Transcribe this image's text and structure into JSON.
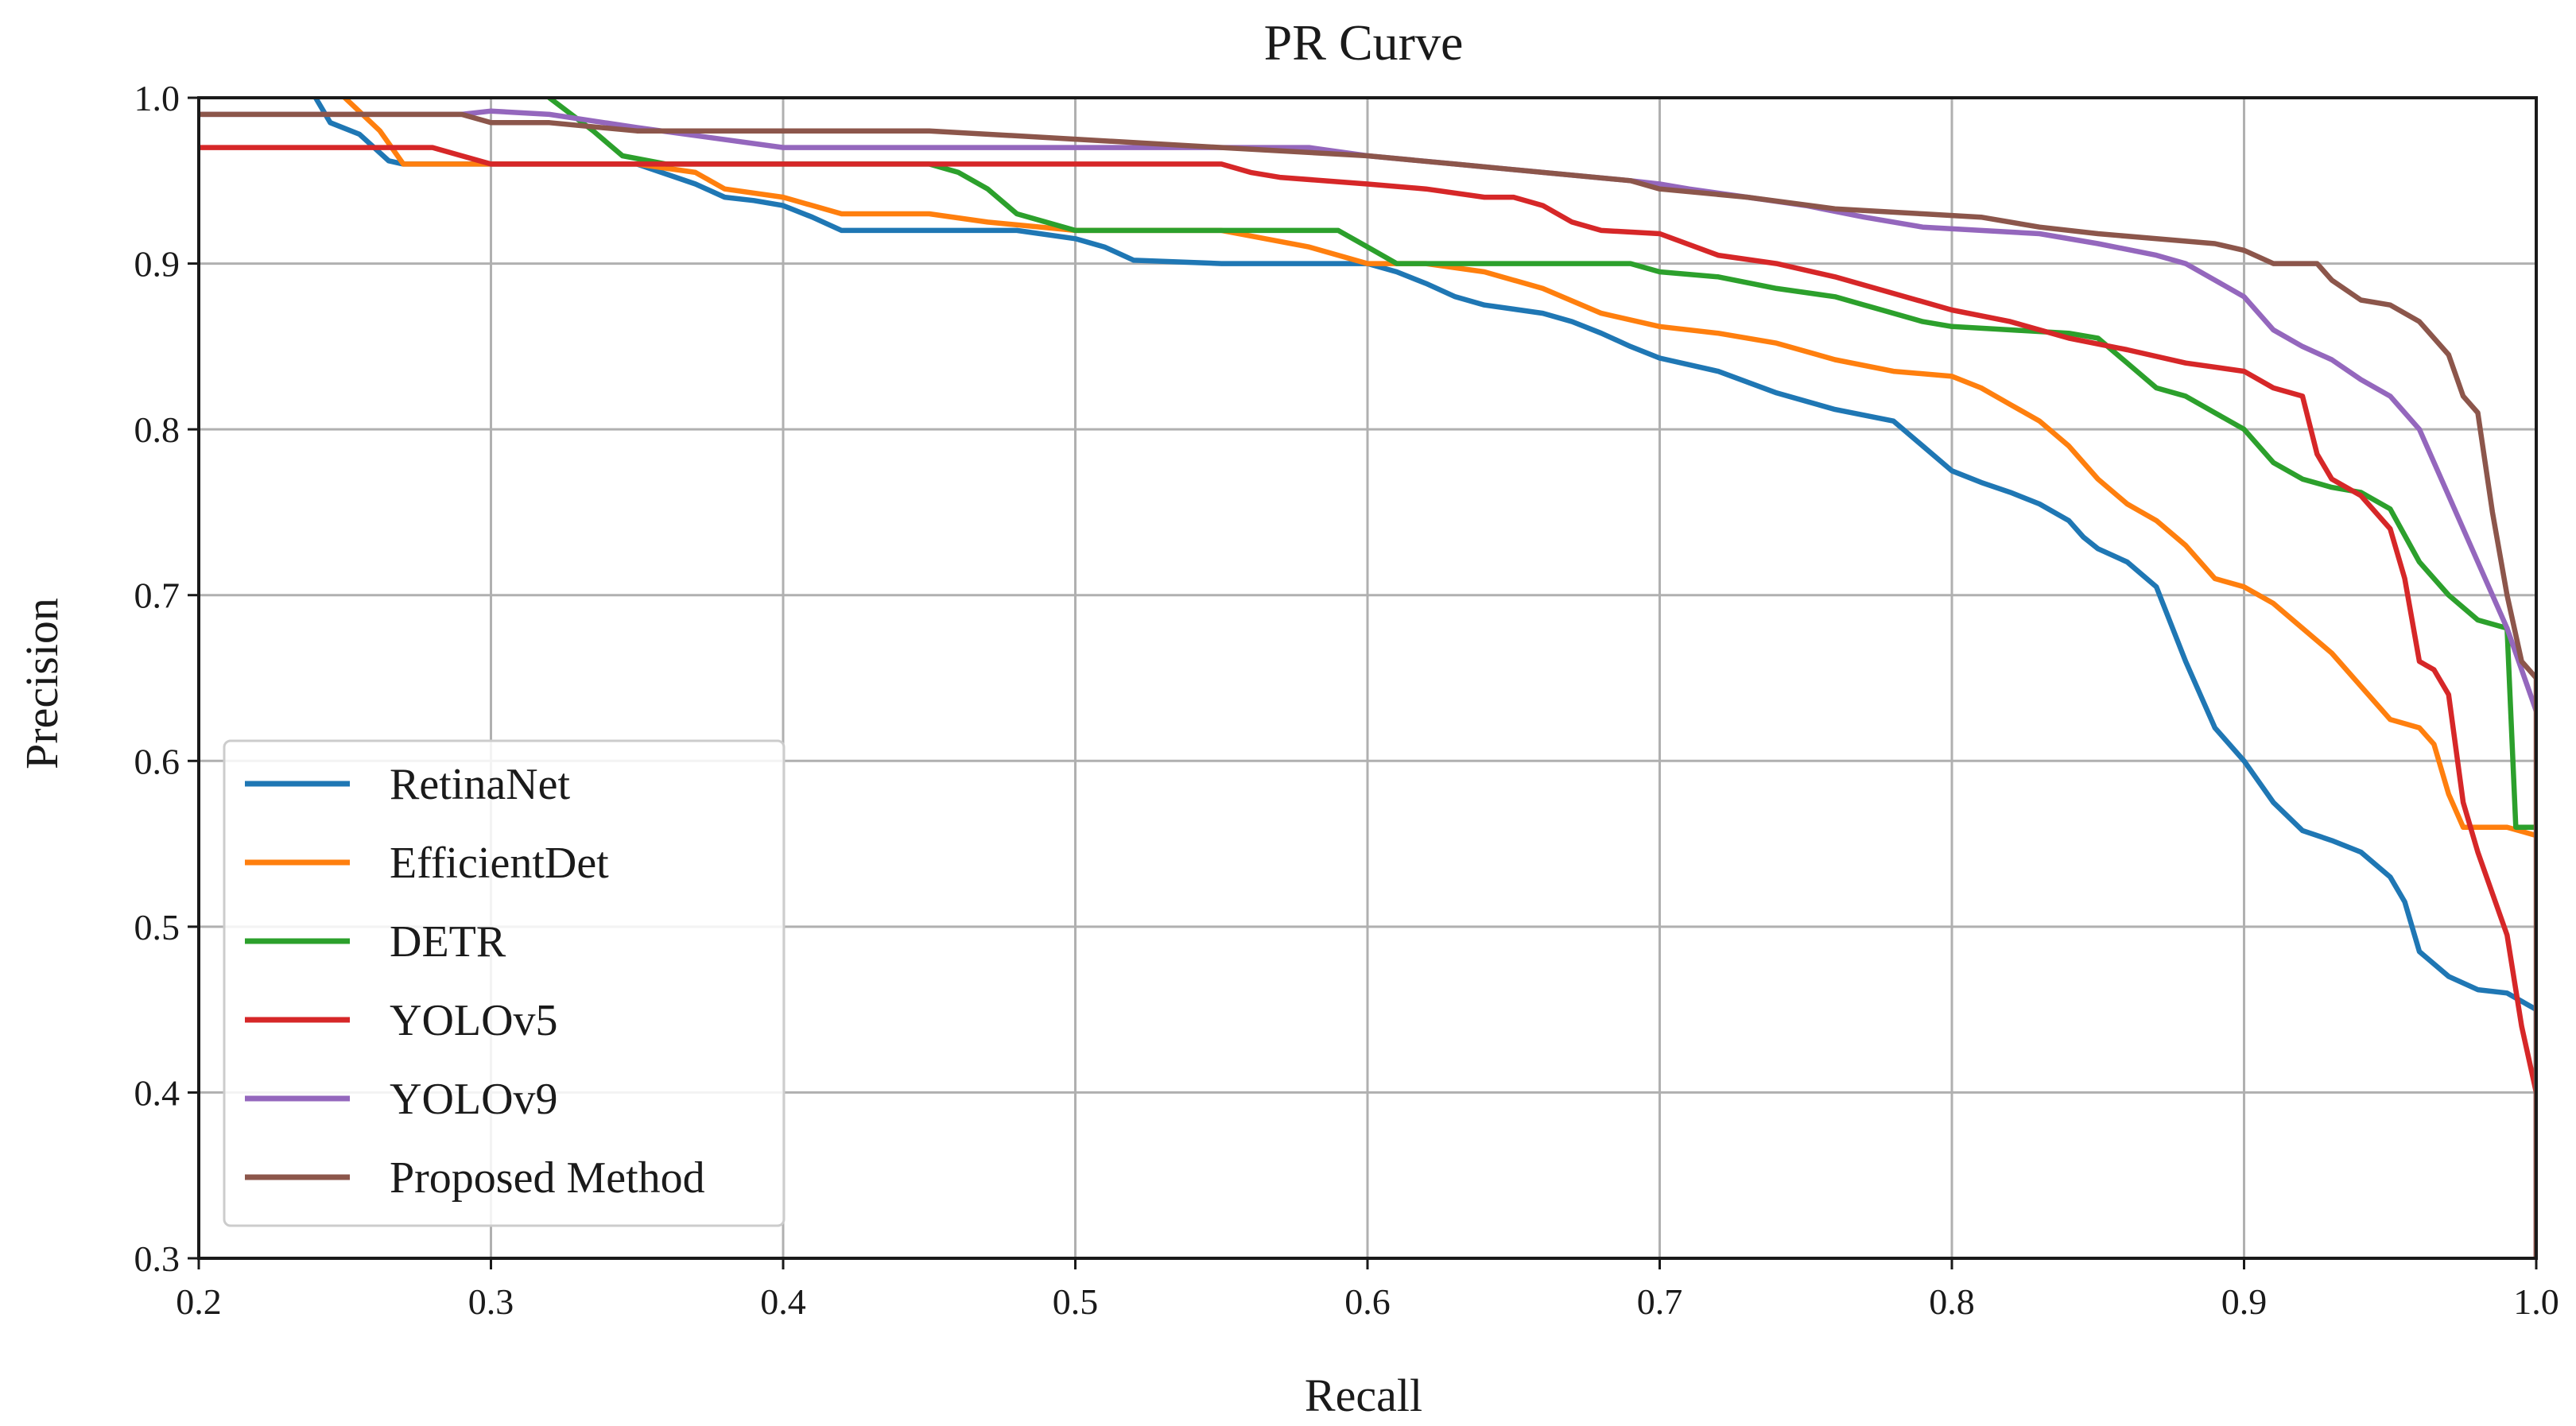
{
  "chart_data": {
    "type": "line",
    "title": "PR Curve",
    "xlabel": "Recall",
    "ylabel": "Precision",
    "xlim": [
      0.2,
      1.0
    ],
    "ylim": [
      0.3,
      1.0
    ],
    "grid": true,
    "legend_position": "lower-left",
    "xticks": [
      "0.2",
      "0.3",
      "0.4",
      "0.5",
      "0.6",
      "0.7",
      "0.8",
      "0.9",
      "1.0"
    ],
    "yticks": [
      "0.3",
      "0.4",
      "0.5",
      "0.6",
      "0.7",
      "0.8",
      "0.9",
      "1.0"
    ],
    "series": [
      {
        "name": "RetinaNet",
        "color": "#1f77b4",
        "x": [
          0.24,
          0.245,
          0.255,
          0.265,
          0.27,
          0.35,
          0.37,
          0.38,
          0.39,
          0.4,
          0.41,
          0.42,
          0.45,
          0.48,
          0.5,
          0.51,
          0.52,
          0.55,
          0.6,
          0.61,
          0.62,
          0.63,
          0.64,
          0.66,
          0.67,
          0.68,
          0.69,
          0.7,
          0.72,
          0.74,
          0.76,
          0.78,
          0.79,
          0.8,
          0.81,
          0.82,
          0.83,
          0.84,
          0.845,
          0.85,
          0.86,
          0.87,
          0.88,
          0.89,
          0.9,
          0.91,
          0.92,
          0.93,
          0.94,
          0.95,
          0.955,
          0.96,
          0.97,
          0.98,
          0.99,
          1.0,
          1.0
        ],
        "y": [
          1.0,
          0.985,
          0.978,
          0.962,
          0.96,
          0.96,
          0.948,
          0.94,
          0.938,
          0.935,
          0.928,
          0.92,
          0.92,
          0.92,
          0.915,
          0.91,
          0.902,
          0.9,
          0.9,
          0.895,
          0.888,
          0.88,
          0.875,
          0.87,
          0.865,
          0.858,
          0.85,
          0.843,
          0.835,
          0.822,
          0.812,
          0.805,
          0.79,
          0.775,
          0.768,
          0.762,
          0.755,
          0.745,
          0.735,
          0.728,
          0.72,
          0.705,
          0.66,
          0.62,
          0.6,
          0.575,
          0.558,
          0.552,
          0.545,
          0.53,
          0.515,
          0.485,
          0.47,
          0.462,
          0.46,
          0.45,
          0.3
        ]
      },
      {
        "name": "EfficientDet",
        "color": "#ff7f0e",
        "x": [
          0.25,
          0.262,
          0.27,
          0.35,
          0.37,
          0.38,
          0.4,
          0.42,
          0.45,
          0.47,
          0.5,
          0.55,
          0.58,
          0.6,
          0.62,
          0.64,
          0.66,
          0.68,
          0.7,
          0.72,
          0.74,
          0.76,
          0.78,
          0.8,
          0.81,
          0.82,
          0.83,
          0.84,
          0.85,
          0.86,
          0.87,
          0.88,
          0.89,
          0.9,
          0.91,
          0.92,
          0.93,
          0.94,
          0.95,
          0.96,
          0.965,
          0.97,
          0.975,
          0.98,
          0.99,
          1.0
        ],
        "y": [
          1.0,
          0.98,
          0.96,
          0.96,
          0.955,
          0.945,
          0.94,
          0.93,
          0.93,
          0.925,
          0.92,
          0.92,
          0.91,
          0.9,
          0.9,
          0.895,
          0.885,
          0.87,
          0.862,
          0.858,
          0.852,
          0.842,
          0.835,
          0.832,
          0.825,
          0.815,
          0.805,
          0.79,
          0.77,
          0.755,
          0.745,
          0.73,
          0.71,
          0.705,
          0.695,
          0.68,
          0.665,
          0.645,
          0.625,
          0.62,
          0.61,
          0.58,
          0.56,
          0.56,
          0.56,
          0.555
        ]
      },
      {
        "name": "DETR",
        "color": "#2ca02c",
        "x": [
          0.32,
          0.335,
          0.345,
          0.36,
          0.45,
          0.46,
          0.47,
          0.48,
          0.5,
          0.55,
          0.59,
          0.6,
          0.61,
          0.62,
          0.65,
          0.69,
          0.7,
          0.72,
          0.74,
          0.76,
          0.77,
          0.78,
          0.79,
          0.8,
          0.82,
          0.84,
          0.85,
          0.86,
          0.87,
          0.88,
          0.89,
          0.9,
          0.91,
          0.92,
          0.93,
          0.94,
          0.95,
          0.96,
          0.97,
          0.98,
          0.99,
          0.993,
          1.0
        ],
        "y": [
          1.0,
          0.98,
          0.965,
          0.96,
          0.96,
          0.955,
          0.945,
          0.93,
          0.92,
          0.92,
          0.92,
          0.91,
          0.9,
          0.9,
          0.9,
          0.9,
          0.895,
          0.892,
          0.885,
          0.88,
          0.875,
          0.87,
          0.865,
          0.862,
          0.86,
          0.858,
          0.855,
          0.84,
          0.825,
          0.82,
          0.81,
          0.8,
          0.78,
          0.77,
          0.765,
          0.762,
          0.752,
          0.72,
          0.7,
          0.685,
          0.68,
          0.56,
          0.56
        ]
      },
      {
        "name": "YOLOv5",
        "color": "#d62728",
        "x": [
          0.2,
          0.28,
          0.29,
          0.3,
          0.55,
          0.56,
          0.57,
          0.6,
          0.62,
          0.64,
          0.65,
          0.66,
          0.67,
          0.68,
          0.7,
          0.72,
          0.74,
          0.76,
          0.78,
          0.8,
          0.82,
          0.84,
          0.86,
          0.88,
          0.9,
          0.91,
          0.92,
          0.925,
          0.93,
          0.94,
          0.95,
          0.955,
          0.96,
          0.965,
          0.97,
          0.975,
          0.98,
          0.99,
          0.995,
          1.0,
          1.0
        ],
        "y": [
          0.97,
          0.97,
          0.965,
          0.96,
          0.96,
          0.955,
          0.952,
          0.948,
          0.945,
          0.94,
          0.94,
          0.935,
          0.925,
          0.92,
          0.918,
          0.905,
          0.9,
          0.892,
          0.882,
          0.872,
          0.865,
          0.855,
          0.848,
          0.84,
          0.835,
          0.825,
          0.82,
          0.785,
          0.77,
          0.76,
          0.74,
          0.71,
          0.66,
          0.655,
          0.64,
          0.575,
          0.545,
          0.495,
          0.44,
          0.4,
          0.3
        ]
      },
      {
        "name": "YOLOv9",
        "color": "#9467bd",
        "x": [
          0.2,
          0.29,
          0.3,
          0.32,
          0.35,
          0.4,
          0.45,
          0.5,
          0.55,
          0.58,
          0.6,
          0.63,
          0.66,
          0.69,
          0.7,
          0.71,
          0.73,
          0.75,
          0.77,
          0.79,
          0.81,
          0.83,
          0.85,
          0.87,
          0.88,
          0.89,
          0.9,
          0.91,
          0.92,
          0.93,
          0.94,
          0.95,
          0.96,
          0.97,
          0.98,
          0.99,
          1.0
        ],
        "y": [
          0.99,
          0.99,
          0.992,
          0.99,
          0.982,
          0.97,
          0.97,
          0.97,
          0.97,
          0.97,
          0.965,
          0.96,
          0.955,
          0.95,
          0.948,
          0.945,
          0.94,
          0.935,
          0.928,
          0.922,
          0.92,
          0.918,
          0.912,
          0.905,
          0.9,
          0.89,
          0.88,
          0.86,
          0.85,
          0.842,
          0.83,
          0.82,
          0.8,
          0.76,
          0.72,
          0.68,
          0.63
        ]
      },
      {
        "name": "Proposed Method",
        "color": "#8c564b",
        "x": [
          0.2,
          0.29,
          0.3,
          0.32,
          0.35,
          0.4,
          0.45,
          0.5,
          0.55,
          0.6,
          0.63,
          0.66,
          0.69,
          0.7,
          0.73,
          0.76,
          0.79,
          0.81,
          0.83,
          0.85,
          0.87,
          0.89,
          0.9,
          0.91,
          0.925,
          0.93,
          0.94,
          0.95,
          0.96,
          0.97,
          0.975,
          0.98,
          0.985,
          0.99,
          0.995,
          1.0,
          1.0
        ],
        "y": [
          0.99,
          0.99,
          0.985,
          0.985,
          0.98,
          0.98,
          0.98,
          0.975,
          0.97,
          0.965,
          0.96,
          0.955,
          0.95,
          0.945,
          0.94,
          0.933,
          0.93,
          0.928,
          0.922,
          0.918,
          0.915,
          0.912,
          0.908,
          0.9,
          0.9,
          0.89,
          0.878,
          0.875,
          0.865,
          0.845,
          0.82,
          0.81,
          0.75,
          0.7,
          0.66,
          0.65,
          0.3
        ]
      }
    ]
  }
}
